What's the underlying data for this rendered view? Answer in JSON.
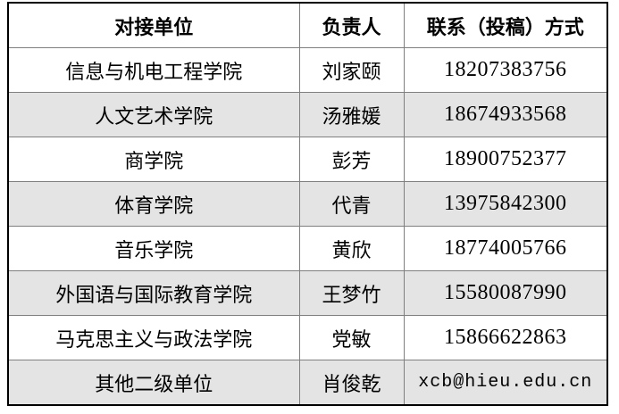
{
  "table": {
    "headers": [
      "对接单位",
      "负责人",
      "联系（投稿）方式"
    ],
    "rows": [
      [
        "信息与机电工程学院",
        "刘家颐",
        "18207383756"
      ],
      [
        "人文艺术学院",
        "汤雅媛",
        "18674933568"
      ],
      [
        "商学院",
        "彭芳",
        "18900752377"
      ],
      [
        "体育学院",
        "代青",
        "13975842300"
      ],
      [
        "音乐学院",
        "黄欣",
        "18774005766"
      ],
      [
        "外国语与国际教育学院",
        "王梦竹",
        "15580087990"
      ],
      [
        "马克思主义与政法学院",
        "党敏",
        "15866622863"
      ],
      [
        "其他二级单位",
        "肖俊乾",
        "xcb@hieu.edu.cn"
      ]
    ]
  },
  "colors": {
    "stripe_row_background": "#e4e4e4",
    "outer_border": "#000000",
    "inner_border": "#7f7f7f",
    "text": "#000000"
  }
}
